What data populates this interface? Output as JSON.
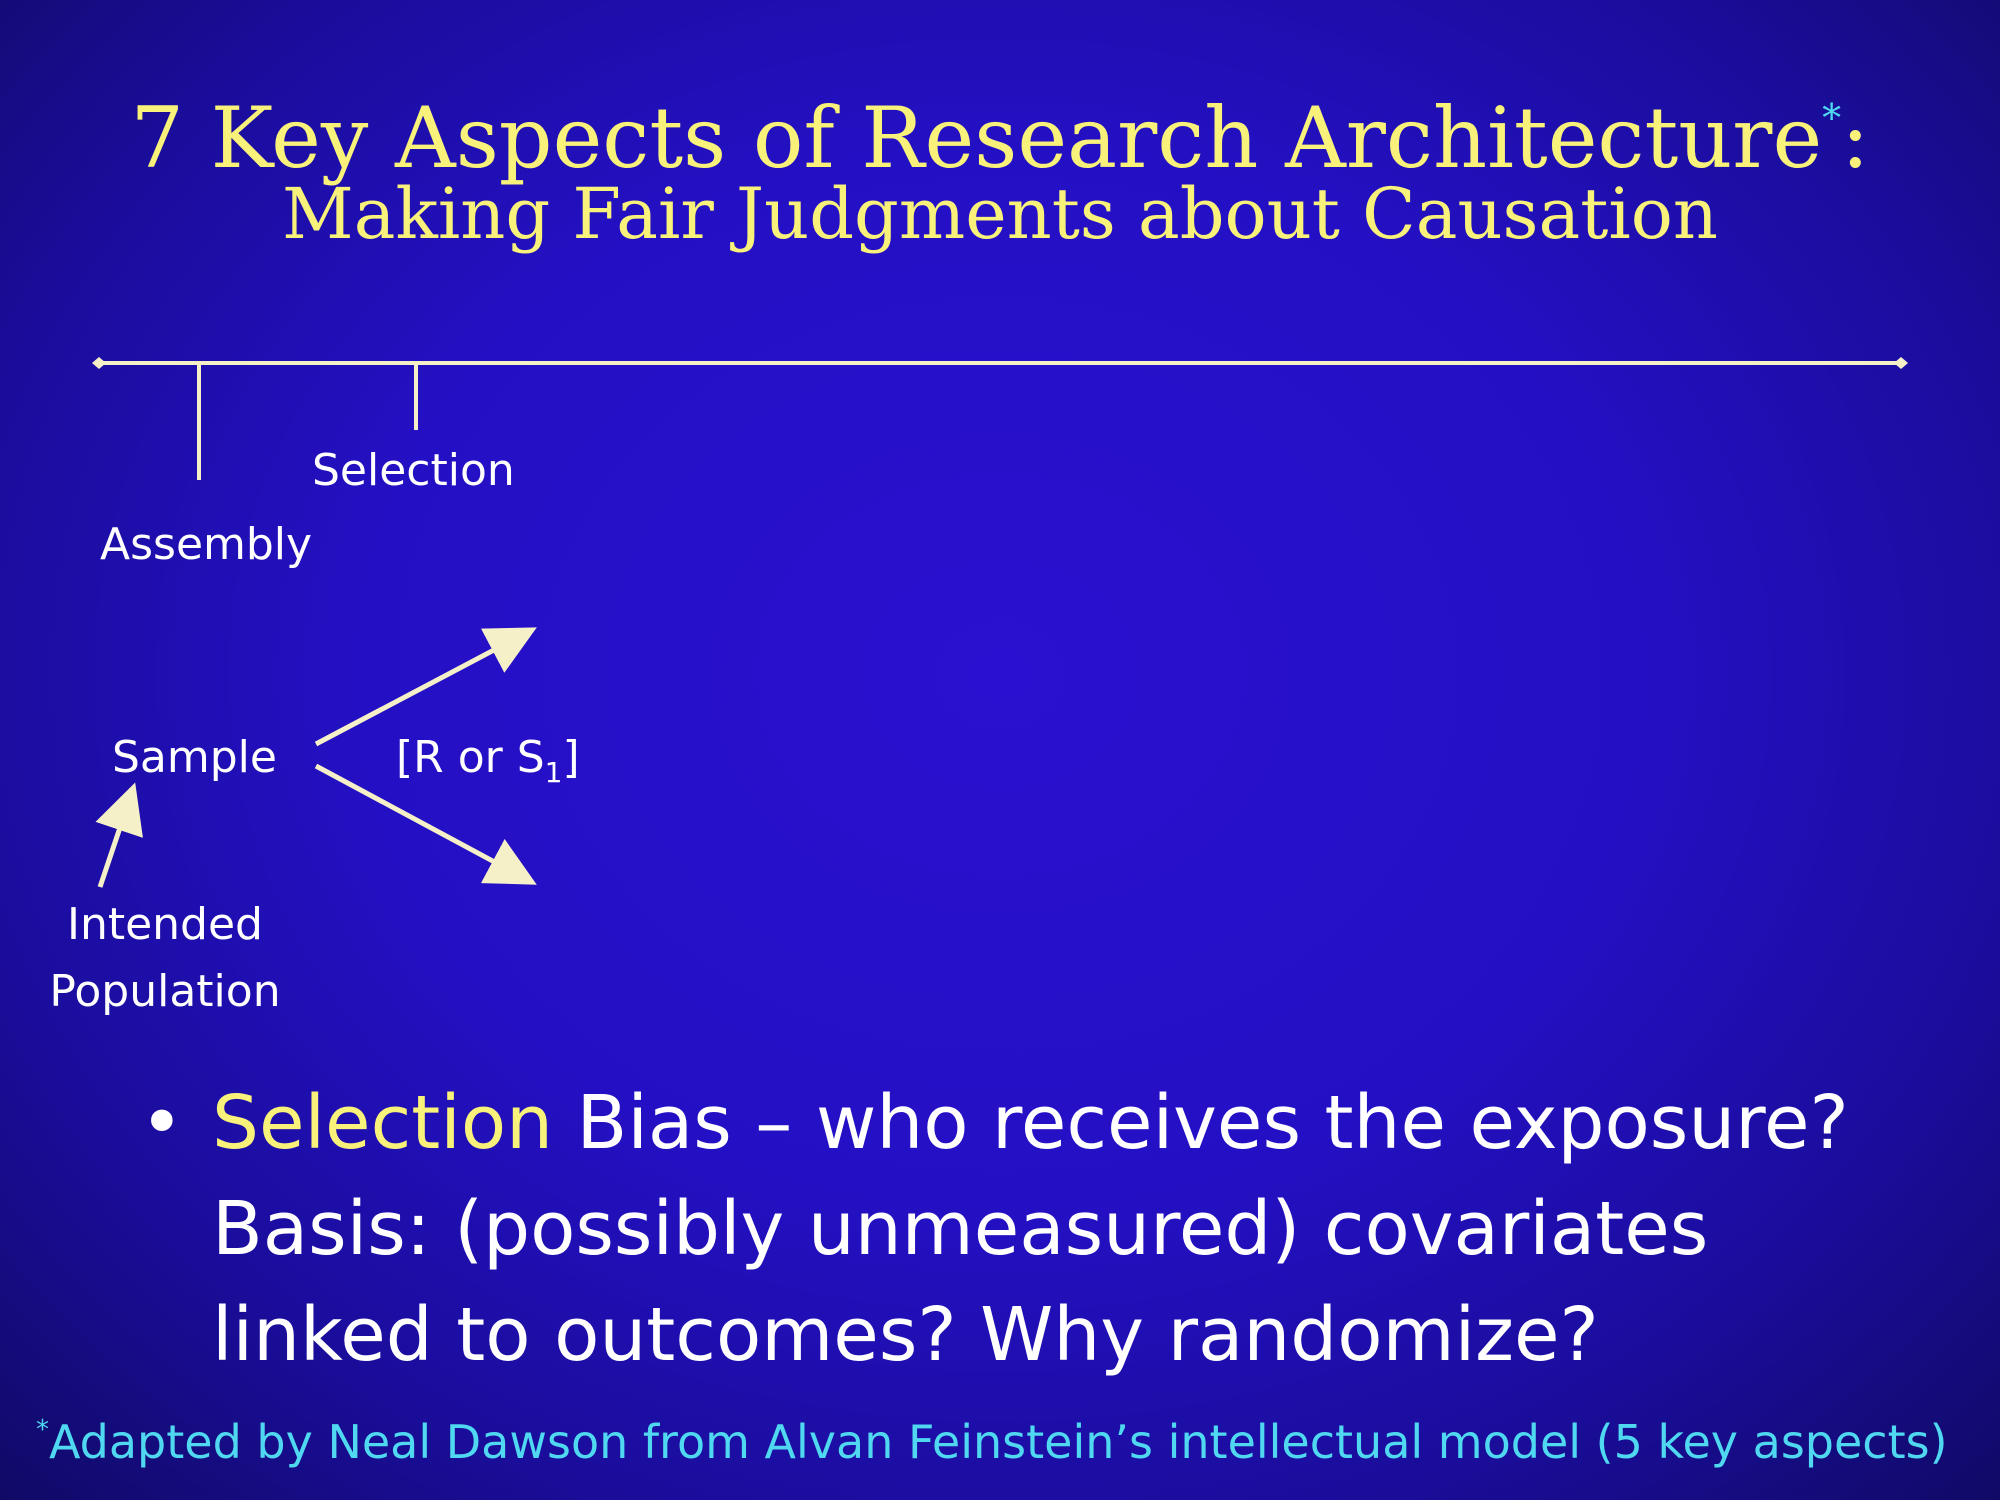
{
  "title": {
    "line1": "7 Key Aspects of Research Architecture",
    "line1_asterisk": "*",
    "line1_colon": ":",
    "line2": "Making Fair Judgments about Causation"
  },
  "diagram": {
    "selection_label": "Selection",
    "assembly_label": "Assembly",
    "sample_label": "Sample",
    "allocation_label": "[R or S",
    "allocation_subscript": "1",
    "allocation_close": "]",
    "intended_label": "Intended",
    "population_label": "Population"
  },
  "bullet": {
    "symbol": "•",
    "highlight": "Selection",
    "line1_rest": " Bias – who receives the exposure?",
    "line2": "Basis: (possibly unmeasured) covariates",
    "line3": "linked to outcomes?  Why randomize?"
  },
  "footnote": {
    "asterisk": "*",
    "text": "Adapted by Neal Dawson from Alvan Feinstein’s intellectual model (5 key aspects)"
  },
  "colors": {
    "title_yellow": "#f8f27a",
    "footnote_cyan": "#4fd8f0",
    "line_color": "#f5f0c8",
    "background_blue": "#2410c4"
  }
}
